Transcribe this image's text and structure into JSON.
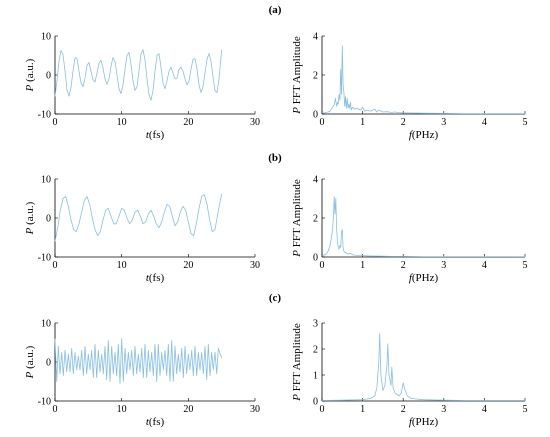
{
  "panel_labels": [
    "(a)",
    "(b)",
    "(c)"
  ],
  "chart_data": [
    {
      "type": "line",
      "panel": "(a)",
      "xlabel": "t(fs)",
      "ylabel": "P (a.u.)",
      "xlim": [
        0,
        30
      ],
      "ylim": [
        -10,
        10
      ],
      "xticks": [
        0,
        10,
        20,
        30
      ],
      "yticks": [
        -10,
        0,
        10
      ],
      "grid": false,
      "series": [
        {
          "color": "#87bfe6",
          "x": [
            0,
            0.3,
            0.6,
            0.9,
            1.2,
            1.5,
            1.8,
            2.1,
            2.4,
            2.7,
            3.0,
            3.3,
            3.6,
            3.9,
            4.2,
            4.5,
            4.8,
            5.1,
            5.4,
            5.7,
            6.0,
            6.3,
            6.6,
            6.9,
            7.2,
            7.5,
            7.8,
            8.1,
            8.4,
            8.7,
            9.0,
            9.3,
            9.6,
            9.9,
            10.2,
            10.5,
            10.8,
            11.1,
            11.4,
            11.7,
            12.0,
            12.3,
            12.6,
            12.9,
            13.2,
            13.5,
            13.8,
            14.1,
            14.4,
            14.7,
            15.0,
            15.3,
            15.6,
            15.9,
            16.2,
            16.5,
            16.8,
            17.1,
            17.4,
            17.7,
            18.0,
            18.3,
            18.6,
            18.9,
            19.2,
            19.5,
            19.8,
            20.1,
            20.4,
            20.7,
            21.0,
            21.3,
            21.6,
            21.9,
            22.2,
            22.5,
            22.8,
            23.1,
            23.4,
            23.7,
            24.0,
            24.3,
            24.6,
            25.0
          ],
          "y": [
            -5.5,
            -1.5,
            3.5,
            6.3,
            5.2,
            1.0,
            -3.8,
            -5.4,
            -3.2,
            1.0,
            4.5,
            4.2,
            1.0,
            -2.0,
            -3.0,
            -0.8,
            2.5,
            3.2,
            1.0,
            -1.2,
            -1.8,
            0.5,
            3.0,
            3.8,
            1.8,
            -1.0,
            -2.4,
            -1.0,
            2.2,
            4.5,
            3.5,
            0.0,
            -3.5,
            -4.8,
            -2.5,
            1.5,
            5.0,
            5.8,
            2.8,
            -1.5,
            -4.0,
            -3.0,
            1.0,
            5.5,
            6.5,
            3.8,
            -1.0,
            -5.0,
            -6.5,
            -4.0,
            1.0,
            5.0,
            5.5,
            2.0,
            -2.0,
            -3.5,
            -1.5,
            1.0,
            2.0,
            0.5,
            -1.0,
            -0.8,
            1.5,
            2.0,
            1.0,
            -1.0,
            -2.5,
            -1.5,
            1.5,
            4.0,
            4.2,
            1.5,
            -2.5,
            -4.5,
            -3.0,
            0.5,
            4.0,
            5.5,
            3.5,
            -0.5,
            -4.0,
            -4.5,
            -1.0,
            6.5
          ]
        }
      ]
    },
    {
      "type": "line",
      "panel": "(a)",
      "xlabel": "f(PHz)",
      "ylabel": "P FFT Amplitude",
      "xlim": [
        0,
        5
      ],
      "ylim": [
        0,
        4
      ],
      "xticks": [
        0,
        1,
        2,
        3,
        4,
        5
      ],
      "yticks": [
        0,
        2,
        4
      ],
      "grid": false,
      "series": [
        {
          "color": "#87bfe6",
          "x": [
            0,
            0.05,
            0.1,
            0.15,
            0.2,
            0.25,
            0.3,
            0.33,
            0.36,
            0.38,
            0.4,
            0.42,
            0.44,
            0.46,
            0.48,
            0.5,
            0.52,
            0.54,
            0.56,
            0.58,
            0.6,
            0.62,
            0.64,
            0.66,
            0.68,
            0.7,
            0.72,
            0.75,
            0.8,
            0.85,
            0.9,
            0.95,
            1.0,
            1.05,
            1.1,
            1.2,
            1.3,
            1.35,
            1.4,
            1.5,
            1.6,
            1.7,
            1.8,
            1.9,
            2.0,
            2.2,
            2.5,
            3.0,
            3.5,
            4.0,
            4.5,
            5.0
          ],
          "y": [
            0.05,
            0.05,
            0.08,
            0.1,
            0.15,
            0.3,
            0.5,
            0.8,
            0.4,
            0.6,
            0.5,
            1.0,
            0.7,
            2.3,
            1.0,
            3.5,
            1.5,
            1.1,
            0.4,
            0.9,
            0.3,
            0.8,
            0.3,
            0.5,
            0.3,
            0.6,
            0.2,
            0.35,
            0.25,
            0.3,
            0.25,
            0.2,
            0.35,
            0.15,
            0.2,
            0.15,
            0.25,
            0.1,
            0.2,
            0.1,
            0.12,
            0.08,
            0.1,
            0.07,
            0.06,
            0.05,
            0.04,
            0.03,
            0.02,
            0.02,
            0.02,
            0.02
          ]
        }
      ]
    },
    {
      "type": "line",
      "panel": "(b)",
      "xlabel": "t(fs)",
      "ylabel": "P (a.u.)",
      "xlim": [
        0,
        30
      ],
      "ylim": [
        -10,
        10
      ],
      "xticks": [
        0,
        10,
        20,
        30
      ],
      "yticks": [
        -10,
        0,
        10
      ],
      "grid": false,
      "series": [
        {
          "color": "#87bfe6",
          "x": [
            0,
            0.4,
            0.8,
            1.2,
            1.6,
            2.0,
            2.4,
            2.8,
            3.2,
            3.6,
            4.0,
            4.4,
            4.8,
            5.2,
            5.6,
            6.0,
            6.4,
            6.8,
            7.2,
            7.6,
            8.0,
            8.4,
            8.8,
            9.2,
            9.6,
            10.0,
            10.4,
            10.8,
            11.2,
            11.6,
            12.0,
            12.4,
            12.8,
            13.2,
            13.6,
            14.0,
            14.4,
            14.8,
            15.2,
            15.6,
            16.0,
            16.4,
            16.8,
            17.2,
            17.6,
            18.0,
            18.4,
            18.8,
            19.2,
            19.6,
            20.0,
            20.4,
            20.8,
            21.2,
            21.6,
            22.0,
            22.4,
            22.8,
            23.2,
            23.6,
            24.0,
            24.4,
            25.0
          ],
          "y": [
            -6.0,
            -2.5,
            2.0,
            5.0,
            5.5,
            3.0,
            -0.5,
            -3.0,
            -3.5,
            -1.5,
            1.5,
            4.5,
            5.5,
            3.5,
            0.0,
            -3.0,
            -4.5,
            -3.5,
            -0.5,
            2.0,
            2.5,
            0.5,
            -1.5,
            -1.5,
            0.5,
            2.5,
            2.0,
            0.0,
            -1.5,
            -0.5,
            1.5,
            2.0,
            0.5,
            -1.5,
            -1.0,
            1.0,
            2.0,
            0.5,
            -1.5,
            -2.5,
            -1.0,
            1.5,
            3.5,
            3.0,
            0.5,
            -2.0,
            -1.0,
            1.5,
            3.0,
            2.0,
            -1.0,
            -4.0,
            -4.5,
            -1.5,
            2.5,
            5.5,
            6.0,
            3.5,
            -0.5,
            -3.5,
            -3.0,
            1.0,
            6.2
          ]
        }
      ]
    },
    {
      "type": "line",
      "panel": "(b)",
      "xlabel": "f(PHz)",
      "ylabel": "P FFT Amplitude",
      "xlim": [
        0,
        5
      ],
      "ylim": [
        0,
        4
      ],
      "xticks": [
        0,
        1,
        2,
        3,
        4,
        5
      ],
      "yticks": [
        0,
        2,
        4
      ],
      "grid": false,
      "series": [
        {
          "color": "#87bfe6",
          "x": [
            0,
            0.05,
            0.1,
            0.15,
            0.2,
            0.25,
            0.28,
            0.3,
            0.32,
            0.34,
            0.36,
            0.38,
            0.4,
            0.42,
            0.44,
            0.46,
            0.48,
            0.5,
            0.52,
            0.54,
            0.56,
            0.6,
            0.65,
            0.7,
            0.75,
            0.8,
            0.9,
            1.0,
            1.1,
            1.2,
            1.3,
            1.5,
            1.7,
            2.0,
            2.5,
            3.0,
            3.5,
            4.0,
            4.5,
            5.0
          ],
          "y": [
            0.05,
            0.1,
            0.15,
            0.3,
            0.6,
            1.2,
            2.0,
            3.1,
            2.2,
            3.0,
            1.5,
            0.8,
            0.5,
            0.4,
            0.6,
            0.5,
            1.3,
            1.4,
            0.5,
            0.3,
            0.25,
            0.2,
            0.15,
            0.2,
            0.12,
            0.1,
            0.08,
            0.07,
            0.06,
            0.05,
            0.05,
            0.04,
            0.03,
            0.03,
            0.02,
            0.02,
            0.02,
            0.02,
            0.02,
            0.02
          ]
        }
      ]
    },
    {
      "type": "line",
      "panel": "(c)",
      "xlabel": "t(fs)",
      "ylabel": "P (a.u.)",
      "xlim": [
        0,
        30
      ],
      "ylim": [
        -10,
        10
      ],
      "xticks": [
        0,
        10,
        20,
        30
      ],
      "yticks": [
        -10,
        0,
        10
      ],
      "grid": false,
      "series": [
        {
          "color": "#87bfe6",
          "x": [
            0,
            0.25,
            0.5,
            0.75,
            1.0,
            1.25,
            1.5,
            1.75,
            2.0,
            2.25,
            2.5,
            2.75,
            3.0,
            3.25,
            3.5,
            3.75,
            4.0,
            4.25,
            4.5,
            4.75,
            5.0,
            5.25,
            5.5,
            5.75,
            6.0,
            6.25,
            6.5,
            6.75,
            7.0,
            7.25,
            7.5,
            7.75,
            8.0,
            8.25,
            8.5,
            8.75,
            9.0,
            9.25,
            9.5,
            9.75,
            10.0,
            10.25,
            10.5,
            10.75,
            11.0,
            11.25,
            11.5,
            11.75,
            12.0,
            12.25,
            12.5,
            12.75,
            13.0,
            13.25,
            13.5,
            13.75,
            14.0,
            14.25,
            14.5,
            14.75,
            15.0,
            15.25,
            15.5,
            15.75,
            16.0,
            16.25,
            16.5,
            16.75,
            17.0,
            17.25,
            17.5,
            17.75,
            18.0,
            18.25,
            18.5,
            18.75,
            19.0,
            19.25,
            19.5,
            19.75,
            20.0,
            20.25,
            20.5,
            20.75,
            21.0,
            21.25,
            21.5,
            21.75,
            22.0,
            22.25,
            22.5,
            22.75,
            23.0,
            23.25,
            23.5,
            23.75,
            24.0,
            24.25,
            24.5,
            25.0
          ],
          "y": [
            6.0,
            -5.0,
            4.0,
            -3.0,
            2.5,
            -3.5,
            3.0,
            -2.5,
            2.0,
            -2.5,
            3.5,
            -3.0,
            2.5,
            -2.0,
            1.5,
            -2.0,
            3.0,
            -3.5,
            4.0,
            -3.0,
            2.0,
            -2.0,
            3.0,
            -4.0,
            4.5,
            -4.0,
            3.0,
            -2.5,
            2.0,
            -3.0,
            4.0,
            -4.5,
            5.5,
            -5.0,
            4.0,
            -3.0,
            2.5,
            -3.5,
            4.5,
            -5.5,
            6.0,
            -5.0,
            3.5,
            -3.0,
            2.5,
            -2.0,
            3.0,
            -3.5,
            4.0,
            -3.0,
            2.0,
            -2.5,
            3.5,
            -4.0,
            4.5,
            -4.0,
            3.0,
            -2.5,
            2.5,
            -3.5,
            4.5,
            -5.0,
            4.5,
            -3.5,
            2.5,
            -2.0,
            3.0,
            -3.5,
            4.5,
            -5.0,
            5.5,
            -5.0,
            4.0,
            -3.0,
            2.0,
            -2.5,
            3.5,
            -4.0,
            4.0,
            -3.0,
            2.0,
            -2.0,
            3.0,
            -3.5,
            4.0,
            -3.5,
            2.5,
            -2.0,
            2.5,
            -3.0,
            4.0,
            -4.5,
            4.5,
            -3.5,
            2.5,
            -2.0,
            2.5,
            -3.0,
            3.5,
            1.0
          ]
        }
      ]
    },
    {
      "type": "line",
      "panel": "(c)",
      "xlabel": "f(PHz)",
      "ylabel": "P FFT Amplitude",
      "xlim": [
        0,
        5
      ],
      "ylim": [
        0,
        3
      ],
      "xticks": [
        0,
        1,
        2,
        3,
        4,
        5
      ],
      "yticks": [
        0,
        1,
        2,
        3
      ],
      "grid": false,
      "series": [
        {
          "color": "#87bfe6",
          "x": [
            0,
            0.5,
            1.0,
            1.2,
            1.3,
            1.35,
            1.4,
            1.42,
            1.45,
            1.5,
            1.55,
            1.6,
            1.62,
            1.65,
            1.7,
            1.72,
            1.75,
            1.8,
            1.85,
            1.9,
            1.95,
            2.0,
            2.05,
            2.1,
            2.2,
            2.3,
            2.5,
            3.0,
            3.5,
            4.0,
            4.5,
            5.0
          ],
          "y": [
            0.02,
            0.03,
            0.05,
            0.1,
            0.2,
            0.5,
            1.5,
            2.6,
            1.0,
            0.4,
            0.6,
            1.4,
            2.2,
            1.0,
            0.6,
            1.3,
            0.5,
            0.3,
            0.25,
            0.2,
            0.3,
            0.7,
            0.4,
            0.2,
            0.1,
            0.08,
            0.05,
            0.03,
            0.02,
            0.02,
            0.02,
            0.02
          ]
        }
      ]
    }
  ]
}
